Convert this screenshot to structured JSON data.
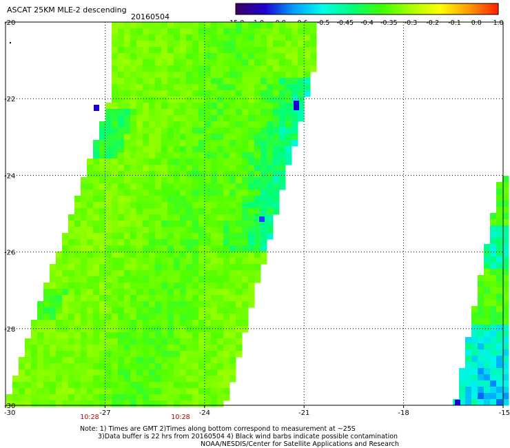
{
  "header": {
    "title": "ASCAT 25KM MLE-2 descending",
    "date": "20160504"
  },
  "colorbar": {
    "labels": [
      "-15.0",
      "-1.0",
      "-0.8",
      "-0.6",
      "-0.5",
      "-0.45",
      "-0.4",
      "-0.35",
      "-0.3",
      "-0.2",
      "-0.1",
      "0.0",
      "1.0"
    ],
    "colors": [
      "#3d0060",
      "#1e00d2",
      "#00a0ff",
      "#00ffe6",
      "#00ff7a",
      "#40ff00",
      "#a8ff00",
      "#ffff00",
      "#ff9900",
      "#ff2000"
    ]
  },
  "map": {
    "lat_labels": [
      "-20",
      "-22",
      "-24",
      "-26",
      "-28",
      "-30"
    ],
    "lon_labels": [
      "-30",
      "-27",
      "-24",
      "-21",
      "-18",
      "-15"
    ],
    "lat_range": [
      -30,
      -20
    ],
    "lon_range": [
      -30,
      -15
    ],
    "time_labels": [
      "10:28",
      "10:28"
    ],
    "grid": true
  },
  "notes": {
    "line1": "Note: 1) Times are GMT 2)Times along bottom correspond to measurement at ~25S",
    "line2": "3)Data buffer is 22 hrs from 20160504 4) Black wind barbs indicate possible contamination",
    "line3": "NOAA/NESDIS/Center for Satellite Applications and Research"
  }
}
